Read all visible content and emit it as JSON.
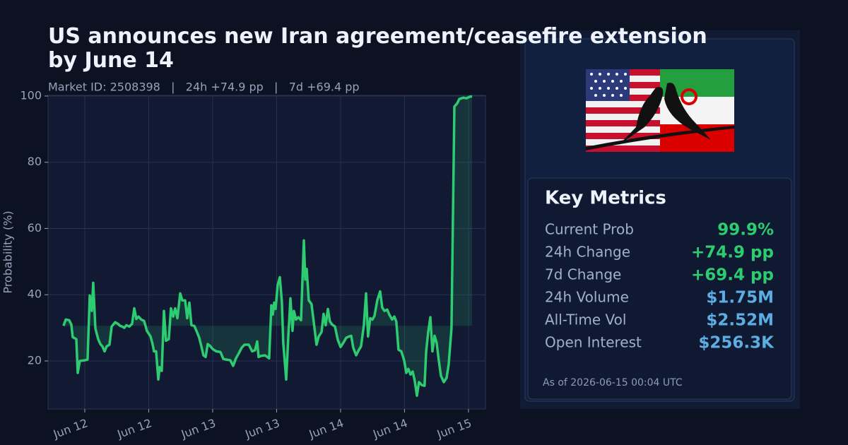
{
  "chart_data": {
    "type": "line",
    "title": "US announces new Iran agreement/ceasefire extension by June 14",
    "subtitle": "Market ID: 2508398   |   24h +74.9 pp   |   7d +69.4 pp",
    "y_label": "Probability (%)",
    "color": "#2ecc71",
    "fill": true,
    "grid": true,
    "xlim": [
      11.713,
      15.133
    ],
    "ylim": [
      5.5,
      100.2
    ],
    "xticks": [
      {
        "value": 12,
        "label": "Jun 12"
      },
      {
        "value": 12.5,
        "label": "Jun 12"
      },
      {
        "value": 13,
        "label": "Jun 13"
      },
      {
        "value": 13.5,
        "label": "Jun 13"
      },
      {
        "value": 14,
        "label": "Jun 14"
      },
      {
        "value": 14.5,
        "label": "Jun 14"
      },
      {
        "value": 15,
        "label": "Jun 15"
      }
    ],
    "yticks": [
      20,
      40,
      60,
      80,
      100
    ],
    "x": [
      11.834,
      11.851,
      11.878,
      11.895,
      11.906,
      11.934,
      11.945,
      11.961,
      12.0,
      12.022,
      12.039,
      12.055,
      12.066,
      12.083,
      12.105,
      12.122,
      12.138,
      12.155,
      12.171,
      12.193,
      12.21,
      12.238,
      12.26,
      12.276,
      12.293,
      12.309,
      12.326,
      12.348,
      12.37,
      12.387,
      12.403,
      12.42,
      12.442,
      12.464,
      12.486,
      12.514,
      12.53,
      12.541,
      12.558,
      12.575,
      12.586,
      12.602,
      12.619,
      12.635,
      12.657,
      12.674,
      12.691,
      12.707,
      12.724,
      12.746,
      12.762,
      12.785,
      12.801,
      12.818,
      12.834,
      12.856,
      12.873,
      12.895,
      12.912,
      12.928,
      12.945,
      12.961,
      12.978,
      13.0,
      13.028,
      13.061,
      13.083,
      13.11,
      13.138,
      13.16,
      13.182,
      13.204,
      13.227,
      13.249,
      13.282,
      13.309,
      13.331,
      13.348,
      13.359,
      13.376,
      13.409,
      13.442,
      13.459,
      13.47,
      13.481,
      13.492,
      13.508,
      13.525,
      13.541,
      13.552,
      13.575,
      13.591,
      13.608,
      13.624,
      13.635,
      13.652,
      13.669,
      13.691,
      13.713,
      13.724,
      13.735,
      13.751,
      13.773,
      13.79,
      13.812,
      13.829,
      13.851,
      13.867,
      13.884,
      13.901,
      13.917,
      13.934,
      13.956,
      13.978,
      14.0,
      14.022,
      14.044,
      14.066,
      14.083,
      14.099,
      14.122,
      14.144,
      14.16,
      14.182,
      14.199,
      14.215,
      14.232,
      14.249,
      14.265,
      14.287,
      14.309,
      14.326,
      14.343,
      14.365,
      14.381,
      14.403,
      14.42,
      14.436,
      14.453,
      14.475,
      14.497,
      14.514,
      14.53,
      14.547,
      14.564,
      14.58,
      14.597,
      14.613,
      14.635,
      14.657,
      14.669,
      14.685,
      14.702,
      14.718,
      14.735,
      14.751,
      14.768,
      14.785,
      14.807,
      14.829,
      14.845,
      14.867,
      14.89,
      14.912,
      14.928,
      14.961,
      14.983,
      15.011,
      15.028
    ],
    "values": [
      30.6,
      32.5,
      32.3,
      31.0,
      27.2,
      26.6,
      16.4,
      20.0,
      20.2,
      20.4,
      39.8,
      35.1,
      43.6,
      29.8,
      26.6,
      25.1,
      24.4,
      22.9,
      24.4,
      24.9,
      30.4,
      31.7,
      31.2,
      30.6,
      30.4,
      30.0,
      30.8,
      30.4,
      31.2,
      35.9,
      32.7,
      33.4,
      32.5,
      32.1,
      29.1,
      27.4,
      25.1,
      22.9,
      22.9,
      14.4,
      18.1,
      17.0,
      35.1,
      26.1,
      26.6,
      35.9,
      33.4,
      35.9,
      32.9,
      40.4,
      38.3,
      38.3,
      32.9,
      37.6,
      30.8,
      30.6,
      29.1,
      27.0,
      24.4,
      21.7,
      21.2,
      25.1,
      24.6,
      23.6,
      22.9,
      22.7,
      20.6,
      20.4,
      20.2,
      18.5,
      20.8,
      22.3,
      24.0,
      24.9,
      24.9,
      22.9,
      23.2,
      25.9,
      21.2,
      21.5,
      21.7,
      20.8,
      36.8,
      34.0,
      37.6,
      35.7,
      42.9,
      45.3,
      37.8,
      25.5,
      14.4,
      27.0,
      38.9,
      29.1,
      35.1,
      32.5,
      33.2,
      32.3,
      56.4,
      44.6,
      47.8,
      38.3,
      37.2,
      31.9,
      24.9,
      27.4,
      28.7,
      34.2,
      30.8,
      35.7,
      31.9,
      31.0,
      30.4,
      26.4,
      24.2,
      25.5,
      27.0,
      27.4,
      27.6,
      24.0,
      21.7,
      23.4,
      24.4,
      30.8,
      40.4,
      27.4,
      32.9,
      32.5,
      33.6,
      38.3,
      41.0,
      36.1,
      35.1,
      35.5,
      34.0,
      32.5,
      33.4,
      31.9,
      23.4,
      22.9,
      20.2,
      16.4,
      17.6,
      15.9,
      16.8,
      14.0,
      9.5,
      13.6,
      12.7,
      12.5,
      22.7,
      28.7,
      33.2,
      22.9,
      27.6,
      25.5,
      20.2,
      15.5,
      13.6,
      14.9,
      18.9,
      29.8,
      96.8,
      97.8,
      99.1,
      99.5,
      99.3,
      99.8,
      99.9
    ]
  },
  "panel": {
    "title": "Key Metrics",
    "metrics": [
      {
        "label": "Current Prob",
        "value": "99.9%",
        "color": "#2ecc71"
      },
      {
        "label": "24h Change",
        "value": "+74.9 pp",
        "color": "#2ecc71"
      },
      {
        "label": "7d Change",
        "value": "+69.4 pp",
        "color": "#2ecc71"
      },
      {
        "label": "24h Volume",
        "value": "$1.75M",
        "color": "#5dade2"
      },
      {
        "label": "All-Time Vol",
        "value": "$2.52M",
        "color": "#5dade2"
      },
      {
        "label": "Open Interest",
        "value": "$256.3K",
        "color": "#5dade2"
      }
    ],
    "footer": "As of 2026-06-15 00:04 UTC"
  }
}
